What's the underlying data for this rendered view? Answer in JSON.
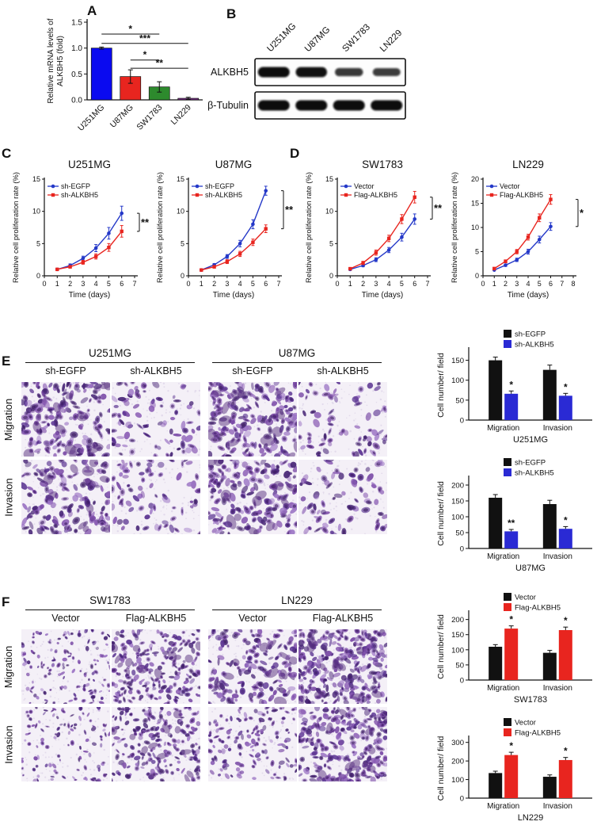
{
  "panelA": {
    "label": "A",
    "chart": {
      "type": "bar",
      "ylabel_lines": [
        "Relative mRNA levels of",
        "ALKBH5 (fold)"
      ],
      "categories": [
        "U251MG",
        "U87MG",
        "SW1783",
        "LN229"
      ],
      "values": [
        1.0,
        0.45,
        0.25,
        0.03
      ],
      "errors": [
        0.02,
        0.13,
        0.1,
        0.02
      ],
      "bar_colors": [
        "#0a0af0",
        "#e8251f",
        "#2d8a2d",
        "#772a88"
      ],
      "ylim": [
        0,
        1.5
      ],
      "yticks": [
        "0.0",
        "0.5",
        "1.0",
        "1.5"
      ],
      "brackets": [
        {
          "from": 0,
          "to": 2,
          "label": "*",
          "y": 1.27
        },
        {
          "from": 0,
          "to": 3,
          "label": "***",
          "y": 1.09
        },
        {
          "from": 1,
          "to": 2,
          "label": "*",
          "y": 0.77
        },
        {
          "from": 1,
          "to": 3,
          "label": "**",
          "y": 0.61
        }
      ]
    }
  },
  "panelB": {
    "label": "B",
    "lanes": [
      "U251MG",
      "U87MG",
      "SW1783",
      "LN229"
    ],
    "rows": [
      {
        "label": "ALKBH5",
        "intensities": [
          1.0,
          0.95,
          0.55,
          0.5
        ]
      },
      {
        "label": "β-Tubulin",
        "intensities": [
          1.0,
          1.0,
          1.0,
          1.0
        ]
      }
    ]
  },
  "panelC": {
    "label": "C",
    "charts": [
      {
        "type": "line",
        "title": "U251MG",
        "ylabel": "Relative cell proliferation rate (%)",
        "xlabel": "Time (days)",
        "ylim": [
          0,
          15
        ],
        "yticks": [
          0,
          5,
          10,
          15
        ],
        "xlim": [
          0,
          7
        ],
        "xticks": [
          0,
          1,
          2,
          3,
          4,
          5,
          6,
          7
        ],
        "sig": "**",
        "series": [
          {
            "name": "sh-EGFP",
            "color": "#2438c8",
            "x": [
              1,
              2,
              3,
              4,
              5,
              6
            ],
            "y": [
              1.0,
              1.6,
              2.7,
              4.3,
              6.6,
              9.7
            ],
            "err": [
              0.15,
              0.25,
              0.35,
              0.55,
              0.9,
              1.1
            ]
          },
          {
            "name": "sh-ALKBH5",
            "color": "#e8251f",
            "x": [
              1,
              2,
              3,
              4,
              5,
              6
            ],
            "y": [
              1.0,
              1.4,
              2.1,
              3.0,
              4.4,
              6.9
            ],
            "err": [
              0.15,
              0.2,
              0.3,
              0.4,
              0.6,
              0.9
            ]
          }
        ]
      },
      {
        "type": "line",
        "title": "U87MG",
        "ylabel": "Relative cell proliferation rate (%)",
        "xlabel": "Time (days)",
        "ylim": [
          0,
          15
        ],
        "yticks": [
          0,
          5,
          10,
          15
        ],
        "xlim": [
          0,
          7
        ],
        "xticks": [
          0,
          1,
          2,
          3,
          4,
          5,
          6,
          7
        ],
        "sig": "**",
        "series": [
          {
            "name": "sh-EGFP",
            "color": "#2438c8",
            "x": [
              1,
              2,
              3,
              4,
              5,
              6
            ],
            "y": [
              0.9,
              1.7,
              3.0,
              5.0,
              8.0,
              13.2
            ],
            "err": [
              0.15,
              0.2,
              0.3,
              0.5,
              0.7,
              0.7
            ]
          },
          {
            "name": "sh-ALKBH5",
            "color": "#e8251f",
            "x": [
              1,
              2,
              3,
              4,
              5,
              6
            ],
            "y": [
              0.9,
              1.4,
              2.2,
              3.4,
              5.2,
              7.3
            ],
            "err": [
              0.15,
              0.2,
              0.3,
              0.4,
              0.5,
              0.6
            ]
          }
        ]
      }
    ]
  },
  "panelD": {
    "label": "D",
    "charts": [
      {
        "type": "line",
        "title": "SW1783",
        "ylabel": "Relative cell proliferation rate (%)",
        "xlabel": "Time (days)",
        "ylim": [
          0,
          15
        ],
        "yticks": [
          0,
          5,
          10,
          15
        ],
        "xlim": [
          0,
          7
        ],
        "xticks": [
          0,
          1,
          2,
          3,
          4,
          5,
          6,
          7
        ],
        "sig": "**",
        "series": [
          {
            "name": "Vector",
            "color": "#2438c8",
            "x": [
              1,
              2,
              3,
              4,
              5,
              6
            ],
            "y": [
              1.0,
              1.6,
              2.5,
              4.0,
              6.0,
              8.8
            ],
            "err": [
              0.15,
              0.2,
              0.3,
              0.4,
              0.6,
              0.8
            ]
          },
          {
            "name": "Flag-ALKBH5",
            "color": "#e8251f",
            "x": [
              1,
              2,
              3,
              4,
              5,
              6
            ],
            "y": [
              1.1,
              2.0,
              3.6,
              5.8,
              8.8,
              12.2
            ],
            "err": [
              0.15,
              0.25,
              0.4,
              0.5,
              0.7,
              0.9
            ]
          }
        ]
      },
      {
        "type": "line",
        "title": "LN229",
        "ylabel": "Relative cell proliferation rate (%)",
        "xlabel": "Time (days)",
        "ylim": [
          0,
          20
        ],
        "yticks": [
          0,
          5,
          10,
          15,
          20
        ],
        "xlim": [
          0,
          8
        ],
        "xticks": [
          0,
          1,
          2,
          3,
          4,
          5,
          6,
          7,
          8
        ],
        "sig": "*",
        "series": [
          {
            "name": "Vector",
            "color": "#2438c8",
            "x": [
              1,
              2,
              3,
              4,
              5,
              6
            ],
            "y": [
              1.2,
              2.2,
              3.3,
              5.0,
              7.5,
              10.2
            ],
            "err": [
              0.15,
              0.25,
              0.35,
              0.5,
              0.7,
              0.8
            ]
          },
          {
            "name": "Flag-ALKBH5",
            "color": "#e8251f",
            "x": [
              1,
              2,
              3,
              4,
              5,
              6
            ],
            "y": [
              1.5,
              3.0,
              5.0,
              8.0,
              12.0,
              15.8
            ],
            "err": [
              0.2,
              0.3,
              0.45,
              0.6,
              0.8,
              1.0
            ]
          }
        ]
      }
    ]
  },
  "panelE": {
    "label": "E",
    "row_labels": [
      "Migration",
      "Invasion"
    ],
    "groups": [
      {
        "cell_line": "U251MG",
        "conditions": [
          "sh-EGFP",
          "sh-ALKBH5"
        ]
      },
      {
        "cell_line": "U87MG",
        "conditions": [
          "sh-EGFP",
          "sh-ALKBH5"
        ]
      }
    ],
    "images": [
      {
        "row": "Migration",
        "cell_line": "U251MG",
        "condition": "sh-EGFP",
        "stain": "crystal-violet",
        "density": 150,
        "scale": 1.1
      },
      {
        "row": "Migration",
        "cell_line": "U251MG",
        "condition": "sh-ALKBH5",
        "stain": "crystal-violet",
        "density": 70,
        "scale": 1.1
      },
      {
        "row": "Migration",
        "cell_line": "U87MG",
        "condition": "sh-EGFP",
        "stain": "crystal-violet",
        "density": 160,
        "scale": 1.1
      },
      {
        "row": "Migration",
        "cell_line": "U87MG",
        "condition": "sh-ALKBH5",
        "stain": "crystal-violet",
        "density": 62,
        "scale": 1.1
      },
      {
        "row": "Invasion",
        "cell_line": "U251MG",
        "condition": "sh-EGFP",
        "stain": "crystal-violet",
        "density": 126,
        "scale": 1.1
      },
      {
        "row": "Invasion",
        "cell_line": "U251MG",
        "condition": "sh-ALKBH5",
        "stain": "crystal-violet",
        "density": 62,
        "scale": 1.1
      },
      {
        "row": "Invasion",
        "cell_line": "U87MG",
        "condition": "sh-EGFP",
        "stain": "crystal-violet",
        "density": 140,
        "scale": 1.1
      },
      {
        "row": "Invasion",
        "cell_line": "U87MG",
        "condition": "sh-ALKBH5",
        "stain": "crystal-violet",
        "density": 62,
        "scale": 1.1
      }
    ],
    "charts": [
      {
        "type": "bar",
        "cell_line": "U251MG",
        "ylabel": "Cell number/ field",
        "categories": [
          "Migration",
          "Invasion"
        ],
        "ylim": [
          0,
          175
        ],
        "yticks": [
          0,
          50,
          100,
          150
        ],
        "series": [
          {
            "name": "sh-EGFP",
            "color": "#111111",
            "values": [
              150,
              126
            ],
            "err": [
              8,
              12
            ],
            "sig": [
              "",
              ""
            ]
          },
          {
            "name": "sh-ALKBH5",
            "color": "#2a2ad4",
            "values": [
              66,
              61
            ],
            "err": [
              7,
              6
            ],
            "sig": [
              "*",
              "*"
            ]
          }
        ]
      },
      {
        "type": "bar",
        "cell_line": "U87MG",
        "ylabel": "Cell number/ field",
        "categories": [
          "Migration",
          "Invasion"
        ],
        "ylim": [
          0,
          220
        ],
        "yticks": [
          0,
          50,
          100,
          150,
          200
        ],
        "series": [
          {
            "name": "sh-EGFP",
            "color": "#111111",
            "values": [
              160,
              140
            ],
            "err": [
              10,
              12
            ],
            "sig": [
              "",
              ""
            ]
          },
          {
            "name": "sh-ALKBH5",
            "color": "#2a2ad4",
            "values": [
              54,
              62
            ],
            "err": [
              6,
              7
            ],
            "sig": [
              "**",
              "*"
            ]
          }
        ]
      }
    ]
  },
  "panelF": {
    "label": "F",
    "row_labels": [
      "Migration",
      "Invasion"
    ],
    "groups": [
      {
        "cell_line": "SW1783",
        "conditions": [
          "Vector",
          "Flag-ALKBH5"
        ]
      },
      {
        "cell_line": "LN229",
        "conditions": [
          "Vector",
          "Flag-ALKBH5"
        ]
      }
    ],
    "images": [
      {
        "row": "Migration",
        "cell_line": "SW1783",
        "condition": "Vector",
        "stain": "crystal-violet",
        "density": 110,
        "scale": 0.7
      },
      {
        "row": "Migration",
        "cell_line": "SW1783",
        "condition": "Flag-ALKBH5",
        "stain": "crystal-violet",
        "density": 170,
        "scale": 0.85
      },
      {
        "row": "Migration",
        "cell_line": "LN229",
        "condition": "Vector",
        "stain": "crystal-violet",
        "density": 135,
        "scale": 1.0
      },
      {
        "row": "Migration",
        "cell_line": "LN229",
        "condition": "Flag-ALKBH5",
        "stain": "crystal-violet",
        "density": 230,
        "scale": 1.0
      },
      {
        "row": "Invasion",
        "cell_line": "SW1783",
        "condition": "Vector",
        "stain": "crystal-violet",
        "density": 90,
        "scale": 0.7
      },
      {
        "row": "Invasion",
        "cell_line": "SW1783",
        "condition": "Flag-ALKBH5",
        "stain": "crystal-violet",
        "density": 165,
        "scale": 0.85
      },
      {
        "row": "Invasion",
        "cell_line": "LN229",
        "condition": "Vector",
        "stain": "crystal-violet",
        "density": 115,
        "scale": 0.8
      },
      {
        "row": "Invasion",
        "cell_line": "LN229",
        "condition": "Flag-ALKBH5",
        "stain": "crystal-violet",
        "density": 205,
        "scale": 1.0
      }
    ],
    "charts": [
      {
        "type": "bar",
        "cell_line": "SW1783",
        "ylabel": "Cell number/ field",
        "categories": [
          "Migration",
          "Invasion"
        ],
        "ylim": [
          0,
          220
        ],
        "yticks": [
          0,
          50,
          100,
          150,
          200
        ],
        "series": [
          {
            "name": "Vector",
            "color": "#111111",
            "values": [
              110,
              90
            ],
            "err": [
              7,
              8
            ],
            "sig": [
              "",
              ""
            ]
          },
          {
            "name": "Flag-ALKBH5",
            "color": "#e8251f",
            "values": [
              170,
              165
            ],
            "err": [
              9,
              10
            ],
            "sig": [
              "*",
              "*"
            ]
          }
        ]
      },
      {
        "type": "bar",
        "cell_line": "LN229",
        "ylabel": "Cell number/ field",
        "categories": [
          "Migration",
          "Invasion"
        ],
        "ylim": [
          0,
          320
        ],
        "yticks": [
          0,
          100,
          200,
          300
        ],
        "series": [
          {
            "name": "Vector",
            "color": "#111111",
            "values": [
              135,
              115
            ],
            "err": [
              10,
              10
            ],
            "sig": [
              "",
              ""
            ]
          },
          {
            "name": "Flag-ALKBH5",
            "color": "#e8251f",
            "values": [
              232,
              205
            ],
            "err": [
              15,
              14
            ],
            "sig": [
              "*",
              "*"
            ]
          }
        ]
      }
    ]
  }
}
